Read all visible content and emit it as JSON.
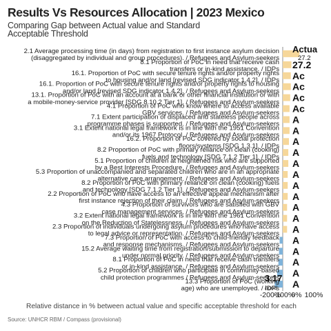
{
  "header": {
    "title": "Results Vs Resources Allocation | 2023 Mexico",
    "subtitle": "Comparing Gap between Actual value and Standard Acceptable Threshold"
  },
  "footer": {
    "source": "Source: UNHCR RBM  / Compass (provisional)"
  },
  "colors": {
    "positive": "#f6d79a",
    "negative": "#7fb3da",
    "text": "#222222",
    "axis": "#444444"
  },
  "chart_data": {
    "type": "bar",
    "orientation": "horizontal",
    "xlabel": "Relative distance in % between actual value and specific acceptable threshold for each",
    "x_ticks": [
      "-200%",
      "-100%",
      "0%",
      "100%"
    ],
    "xlim": [
      -250,
      150
    ],
    "categories": [
      "2.1 Average processing time (in days) from registration to first instance asylum decision (disaggregated by individual and group procedures). / Refugees and Asylum-seekers",
      "8.1 Proportion of PoC in need that receive cash transfers or in-kind assistance. / IDPs",
      "16.1. Proportion of PoC with secure tenure rights and/or property rights to housing and/or land [revised SDG indicator 1.4.2]. / IDPs",
      "16.1. Proportion of PoC with secure tenure rights and/or property rights to housing and/or land [revised SDG indicator 1.4.2]. / Refugees and Asylum-seekers",
      "13.1. Proportion of PoC with an account at a bank or other financial institution or with a mobile-money-service provider [SDG 8.10.2 Tier 1]. / Refugees and Asylum-seekers",
      "4.1 Proportion of PoC who know where to access available GBV services. / Refugees and Asylum-seekers",
      "7.1 Extent participation of displaced and stateless people across programme phases is supported. / Refugees and Asylum-seekers",
      "3.1 Extent national legal framework is in line with the 1951 Convention and/or its 1967 Protocol. / Refugees and Asylum-seekers",
      "16.2. Proportion of PoC covered by social protection floors/systems [SDG 1.3.1]. / IDPs",
      "8.2 Proportion of PoC with primary reliance on clean (cooking) fuels and technology [SDG 7.1.2 Tier 1]. / IDPs",
      "5.1 Proportion of children at heightened risk who are supported by a Best Interests Procedure. / Refugees and Asylum-seekers",
      "5.3 Proportion of unaccompanied and separated children who are in an appropriate alternative care arrangement. / Refugees and Asylum-seekers",
      "8.2 Proportion of PoC with primary reliance on clean (cooking) fuels and technology [SDG 7.1.2 Tier 1]. / Refugees and Asylum-seekers",
      "2.2 Proportion of PoC who have access to an effective appeal mechanism after first instance rejection of their claim. / Refugees and Asylum-seekers",
      "4.3 Proportion of survivors who are satisfied with GBV case management services. / Refugees and Asylum-seekers",
      "3.2 Extent national legal framework is in line with the 1961 Convention on the Reduction of Statelessness. / Refugees and Asylum-seekers",
      "2.3 Proportion of individuals undergoing asylum procedures who have access to legal advice or representation. / Refugees and Asylum-seekers",
      "7.3 Proportion of PoC with access to child-friendly feedback and response mechanisms. / Refugees and Asylum-seekers",
      "15.2 Average waiting time from registration/submission to departure under normal priority. / Refugees and Asylum-seekers",
      "8.1 Proportion of PoC in need that receive cash transfers or in-kind assistance. / Refugees and Asylum-seekers",
      "5.2 Proportion of children who participate in community-based child protection programmes / Refugees and Asylum-seekers",
      "13.3 Proportion of PoC (working age) who are unemployed. / IDPs"
    ],
    "values": [
      27,
      14,
      13,
      13,
      12,
      11,
      11,
      11,
      10,
      9,
      9,
      8,
      8,
      8,
      7,
      7,
      7,
      -5,
      -6,
      -7,
      -9,
      -13
    ],
    "bar_labels": [
      "Actua",
      "27.2",
      "Ac",
      "Ac",
      "Ac",
      "Ac",
      "A",
      "A",
      "A",
      "A",
      "A",
      "A",
      "A",
      "A",
      "A",
      "A",
      "A",
      "A",
      "A",
      "A",
      "A",
      "A"
    ],
    "annotation": {
      "value": "3.17",
      "text": "hood"
    }
  }
}
